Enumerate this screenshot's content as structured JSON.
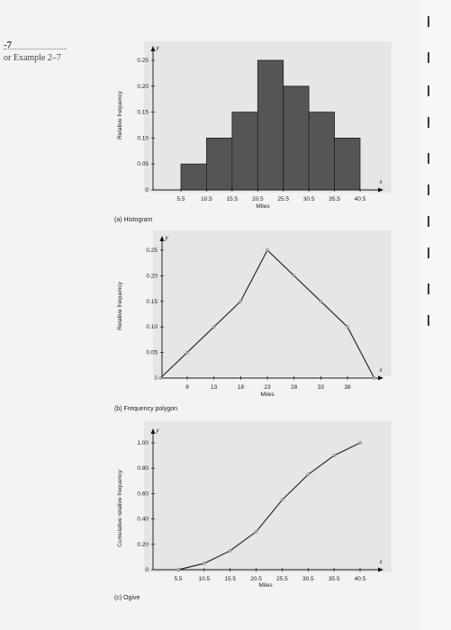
{
  "margin": {
    "number": "-7",
    "caption": "or Example 2–7"
  },
  "colors": {
    "bar": "#555555",
    "line": "#2b2b2b",
    "point": "#bcbcbc",
    "panel": "#e6e6e6"
  },
  "chart_data": [
    {
      "type": "bar",
      "caption": "(a) Histogram",
      "xlabel": "Miles",
      "ylabel": "Relative frequency",
      "ylim": [
        0,
        0.25
      ],
      "y_ticks": [
        "0",
        "0.05",
        "0.10",
        "0.15",
        "0.20",
        "0.25"
      ],
      "x_ticks": [
        "5.5",
        "10.5",
        "15.5",
        "20.5",
        "25.5",
        "30.5",
        "35.5",
        "40.5"
      ],
      "bins": [
        [
          5.5,
          10.5
        ],
        [
          10.5,
          15.5
        ],
        [
          15.5,
          20.5
        ],
        [
          20.5,
          25.5
        ],
        [
          25.5,
          30.5
        ],
        [
          30.5,
          35.5
        ],
        [
          35.5,
          40.5
        ]
      ],
      "values": [
        0.05,
        0.1,
        0.15,
        0.25,
        0.2,
        0.15,
        0.1
      ]
    },
    {
      "type": "line",
      "caption": "(b) Frequency polygon",
      "xlabel": "Miles",
      "ylabel": "Relative frequency",
      "ylim": [
        0,
        0.25
      ],
      "y_ticks": [
        "0",
        "0.05",
        "0.10",
        "0.15",
        "0.20",
        "0.25"
      ],
      "x_ticks": [
        "8",
        "13",
        "18",
        "23",
        "28",
        "33",
        "38"
      ],
      "x": [
        3,
        8,
        13,
        18,
        23,
        28,
        33,
        38,
        43
      ],
      "values": [
        0,
        0.05,
        0.1,
        0.15,
        0.25,
        0.2,
        0.15,
        0.1,
        0
      ]
    },
    {
      "type": "line",
      "caption": "(c) Ogive",
      "xlabel": "Miles",
      "ylabel": "Cumulative relative frequency",
      "ylim": [
        0,
        1.0
      ],
      "y_ticks": [
        "0",
        "0.20",
        "0.40",
        "0.60",
        "0.80",
        "1.00"
      ],
      "x_ticks": [
        "5.5",
        "10.5",
        "15.5",
        "20.5",
        "25.5",
        "30.5",
        "35.5",
        "40.5"
      ],
      "x": [
        5.5,
        10.5,
        15.5,
        20.5,
        25.5,
        30.5,
        35.5,
        40.5
      ],
      "values": [
        0,
        0.05,
        0.15,
        0.3,
        0.55,
        0.75,
        0.9,
        1.0
      ]
    }
  ]
}
